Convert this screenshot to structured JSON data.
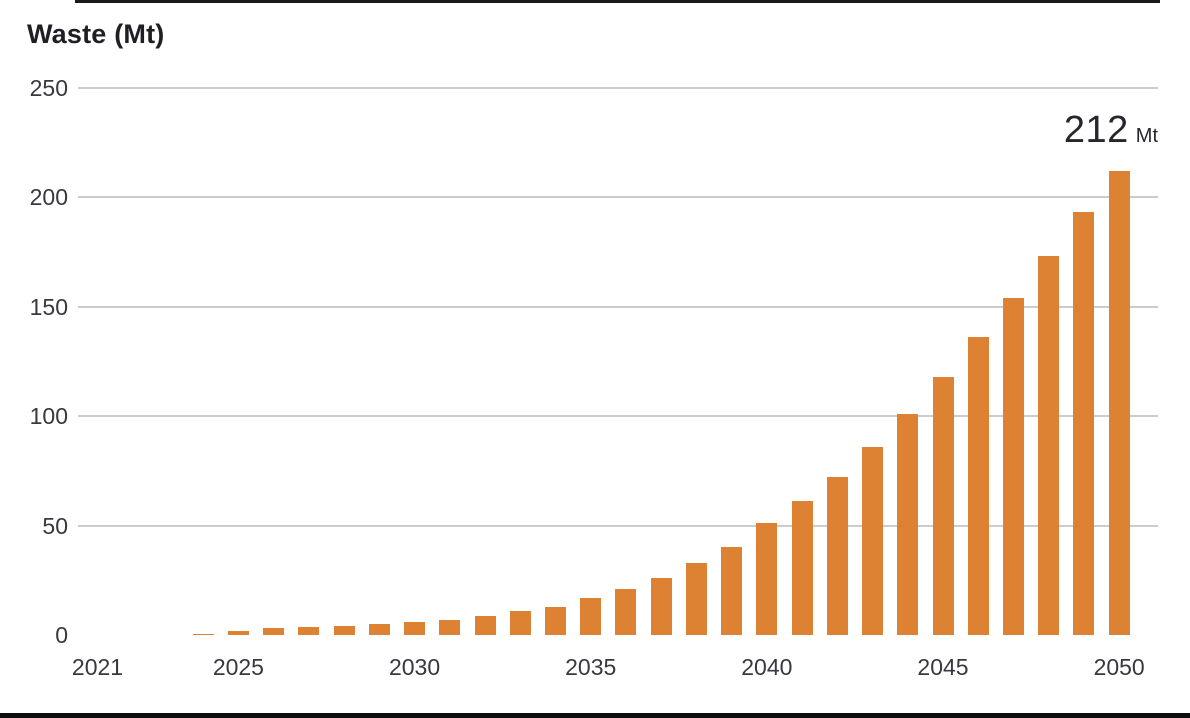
{
  "chart_data": {
    "type": "bar",
    "title": "Waste (Mt)",
    "ylabel": "Waste (Mt)",
    "xlabel": "",
    "categories": [
      2021,
      2022,
      2023,
      2024,
      2025,
      2026,
      2027,
      2028,
      2029,
      2030,
      2031,
      2032,
      2033,
      2034,
      2035,
      2036,
      2037,
      2038,
      2039,
      2040,
      2041,
      2042,
      2043,
      2044,
      2045,
      2046,
      2047,
      2048,
      2049,
      2050
    ],
    "values": [
      0,
      0,
      0,
      0.5,
      2,
      3,
      3.5,
      4,
      5,
      6,
      7,
      8.5,
      11,
      13,
      17,
      21,
      26,
      33,
      40,
      51,
      61,
      72,
      86,
      101,
      118,
      136,
      154,
      173,
      193,
      212
    ],
    "ylim": [
      0,
      250
    ],
    "y_ticks": [
      0,
      50,
      100,
      150,
      200,
      250
    ],
    "x_tick_labels": [
      "2021",
      "2025",
      "2030",
      "2035",
      "2040",
      "2045",
      "2050"
    ],
    "grid": "horizontal",
    "legend": "none",
    "annotation": {
      "value": "212",
      "unit": "Mt",
      "year": 2050
    },
    "colors": {
      "bar": "#dd8233",
      "gridline": "#cccccc",
      "axis": "#1a1a1a",
      "tick_text": "#38383f",
      "title_text": "#1e1e24",
      "annotation_text": "#26262c",
      "background": "#ffffff",
      "bottom_rule": "#0d0d0d"
    }
  }
}
